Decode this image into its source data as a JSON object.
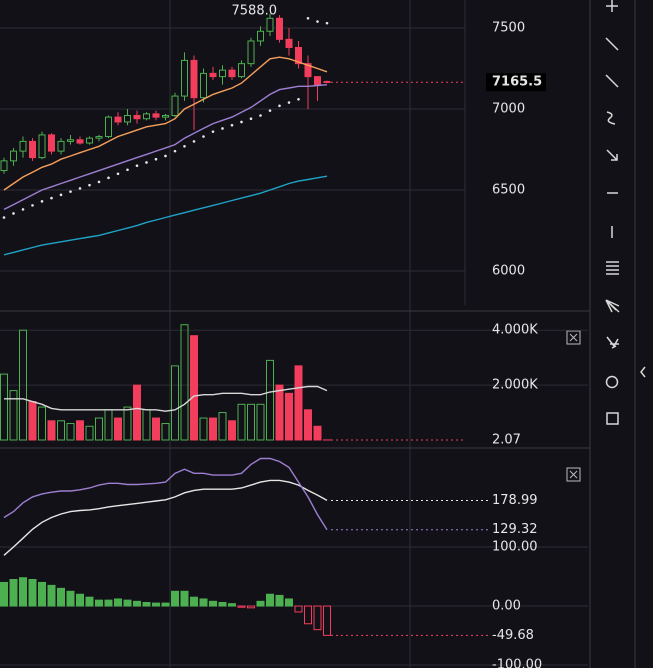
{
  "chart_data": [
    {
      "type": "candlestick",
      "categories": [
        null,
        null,
        null,
        null,
        null,
        null,
        null,
        null,
        null,
        null,
        null,
        null,
        null,
        null,
        null,
        null,
        null,
        null,
        null,
        null,
        null,
        null,
        null,
        null,
        null,
        null,
        null,
        null,
        null,
        null,
        null,
        null,
        null,
        null,
        null
      ],
      "open": [
        6620,
        6680,
        6740,
        6800,
        6700,
        6840,
        6740,
        6800,
        6810,
        6790,
        6820,
        6830,
        6950,
        6920,
        6960,
        6940,
        6970,
        6950,
        6960,
        7080,
        7300,
        7070,
        7220,
        7200,
        7240,
        7200,
        7280,
        7420,
        7480,
        7560,
        7430,
        7380,
        7280,
        7200,
        7170
      ],
      "high": [
        6700,
        6760,
        6830,
        6820,
        6860,
        6850,
        6820,
        6840,
        6830,
        6830,
        6840,
        6960,
        6980,
        7000,
        6990,
        6980,
        6990,
        6970,
        7100,
        7350,
        7330,
        7250,
        7260,
        7270,
        7260,
        7300,
        7440,
        7510,
        7588,
        7580,
        7500,
        7420,
        7330,
        7200,
        7175
      ],
      "low": [
        6600,
        6650,
        6700,
        6680,
        6690,
        6720,
        6720,
        6780,
        6780,
        6780,
        6800,
        6820,
        6900,
        6900,
        6910,
        6930,
        6930,
        6930,
        6950,
        7050,
        6870,
        7040,
        7180,
        7150,
        7180,
        7190,
        7260,
        7390,
        7450,
        7410,
        7330,
        7250,
        7000,
        7050,
        7160
      ],
      "close": [
        6680,
        6740,
        6800,
        6700,
        6840,
        6740,
        6800,
        6810,
        6790,
        6820,
        6830,
        6950,
        6920,
        6960,
        6940,
        6970,
        6950,
        6960,
        7080,
        7300,
        7070,
        7220,
        7200,
        7240,
        7200,
        7280,
        7420,
        7480,
        7560,
        7430,
        7380,
        7280,
        7200,
        7150,
        7165.5
      ],
      "up_color": "#4caf50",
      "down_color": "#f23d5c",
      "max_label": "7588.0",
      "ylim": [
        5790,
        7673
      ],
      "yticks": [
        6000,
        6500,
        7000,
        7500
      ],
      "series": [
        {
          "color": "#f5a05a",
          "values": [
            6500,
            6540,
            6580,
            6610,
            6640,
            6660,
            6690,
            6710,
            6730,
            6750,
            6770,
            6800,
            6830,
            6850,
            6870,
            6890,
            6900,
            6910,
            6940,
            7000,
            7030,
            7060,
            7090,
            7110,
            7130,
            7160,
            7210,
            7260,
            7310,
            7320,
            7310,
            7290,
            7270,
            7250,
            7230
          ]
        },
        {
          "color": "#9c7fd1",
          "values": [
            6380,
            6410,
            6440,
            6470,
            6500,
            6520,
            6540,
            6560,
            6580,
            6600,
            6620,
            6640,
            6660,
            6680,
            6700,
            6720,
            6740,
            6760,
            6780,
            6820,
            6850,
            6880,
            6910,
            6930,
            6950,
            6980,
            7010,
            7050,
            7090,
            7120,
            7130,
            7140,
            7140,
            7145,
            7150
          ]
        },
        {
          "color": "#e6e6e6",
          "style": "dots",
          "values": [
            6330,
            6355,
            6380,
            6405,
            6430,
            6450,
            6470,
            6490,
            6510,
            6530,
            6550,
            6575,
            6600,
            6625,
            6650,
            6670,
            6690,
            6710,
            6740,
            6770,
            6800,
            6830,
            6860,
            6880,
            6900,
            6920,
            6940,
            6960,
            6990,
            7020,
            7040,
            7060,
            7560,
            7540,
            7530
          ]
        },
        {
          "color": "#1fa3c7",
          "values": [
            6100,
            6115,
            6130,
            6145,
            6160,
            6170,
            6180,
            6190,
            6200,
            6210,
            6220,
            6235,
            6250,
            6265,
            6280,
            6300,
            6315,
            6330,
            6345,
            6360,
            6375,
            6390,
            6405,
            6420,
            6435,
            6450,
            6465,
            6480,
            6500,
            6520,
            6540,
            6555,
            6565,
            6575,
            6585
          ]
        }
      ]
    },
    {
      "type": "volume",
      "values": [
        2400,
        1800,
        4000,
        1400,
        1200,
        700,
        700,
        600,
        700,
        500,
        800,
        1100,
        800,
        1200,
        2000,
        1100,
        800,
        600,
        2700,
        4200,
        3800,
        800,
        800,
        1000,
        700,
        1300,
        1300,
        1300,
        2900,
        2000,
        1700,
        2700,
        1100,
        500,
        2.07
      ],
      "up_color": "#4caf50",
      "down_color": "#f23d5c",
      "ylim": [
        0,
        4444
      ],
      "yticks": [
        {
          "value": 2000,
          "label": "2.000K"
        },
        {
          "value": 4000,
          "label": "4.000K"
        }
      ],
      "series": [
        {
          "color": "#d8d8d8",
          "values": [
            1500,
            1500,
            1500,
            1400,
            1300,
            1150,
            1100,
            1100,
            1100,
            1100,
            1100,
            1100,
            1100,
            1100,
            1150,
            1100,
            1100,
            1050,
            1100,
            1300,
            1600,
            1650,
            1650,
            1700,
            1700,
            1700,
            1650,
            1650,
            1750,
            1800,
            1850,
            1900,
            1950,
            1950,
            1800
          ]
        }
      ]
    },
    {
      "type": "histogram",
      "values": [
        40,
        45,
        48,
        45,
        40,
        35,
        30,
        25,
        20,
        15,
        10,
        10,
        12,
        10,
        8,
        6,
        5,
        5,
        25,
        25,
        15,
        12,
        8,
        6,
        4,
        -2,
        -3,
        8,
        20,
        18,
        12,
        -10,
        -30,
        -40,
        -49.68
      ],
      "up_color": "#4caf50",
      "down_color": "#f23d5c",
      "ylim": [
        -105,
        256
      ],
      "yticks": [
        {
          "value": -100,
          "label": "-100.00"
        },
        {
          "value": 0,
          "label": "0.00"
        },
        {
          "value": 100,
          "label": "100.00"
        }
      ],
      "series": [
        {
          "color": "#e6e6e6",
          "values": [
            86,
            100,
            115,
            130,
            142,
            150,
            156,
            160,
            162,
            163,
            165,
            168,
            170,
            172,
            174,
            176,
            178,
            180,
            185,
            192,
            196,
            198,
            198,
            198,
            198,
            200,
            205,
            210,
            213,
            213,
            210,
            205,
            196,
            188,
            178.99
          ]
        },
        {
          "color": "#9c7fd1",
          "values": [
            150,
            160,
            175,
            185,
            190,
            193,
            195,
            195,
            197,
            200,
            205,
            208,
            208,
            206,
            206,
            207,
            208,
            210,
            225,
            232,
            225,
            225,
            222,
            222,
            222,
            225,
            240,
            250,
            250,
            245,
            235,
            210,
            185,
            155,
            129.32
          ]
        }
      ]
    }
  ]
}
